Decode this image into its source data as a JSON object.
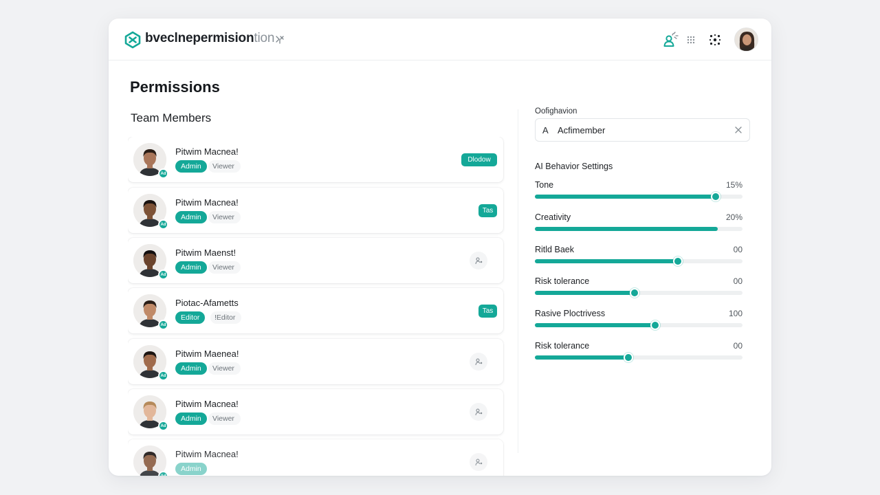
{
  "header": {
    "brand_main": "bvecl​nepermision",
    "brand_faded": "tion",
    "icons": [
      "user-check-icon",
      "apps-grid-icon",
      "settings-dots-icon"
    ]
  },
  "page": {
    "title": "Permissions"
  },
  "team": {
    "title": "Team Members",
    "members": [
      {
        "name": "Pitwim Macnea!",
        "badge": "Ad",
        "role": "Admin",
        "secondary": "Viewer",
        "action": "Dlodow",
        "action_type": "pill",
        "skin": "#a9765a",
        "hair": "#2a1d16"
      },
      {
        "name": "Pitwim Macnea!",
        "badge": "Ad",
        "role": "Admin",
        "secondary": "Viewer",
        "action": "Tas",
        "action_type": "pill",
        "skin": "#7d5236",
        "hair": "#1a1310"
      },
      {
        "name": "Pitwim Maenst!",
        "badge": "Ad",
        "role": "Admin",
        "secondary": "Viewer",
        "action": "",
        "action_type": "icon",
        "skin": "#6a432c",
        "hair": "#141010"
      },
      {
        "name": "Piotac-Afametts",
        "badge": "Ad",
        "role": "Editor",
        "secondary": "!Editor",
        "action": "Tas",
        "action_type": "pill",
        "skin": "#c08a68",
        "hair": "#2b1f18"
      },
      {
        "name": "Pitwim Maenea!",
        "badge": "Ad",
        "role": "Admin",
        "secondary": "Viewer",
        "action": "",
        "action_type": "icon",
        "skin": "#a06b4c",
        "hair": "#1c1512"
      },
      {
        "name": "Pitwim Macnea!",
        "badge": "Ad",
        "role": "Admin",
        "secondary": "Viewer",
        "action": "",
        "action_type": "icon",
        "skin": "#e2b79a",
        "hair": "#b58a5a"
      },
      {
        "name": "Pitwim Macnea!",
        "badge": "Ad",
        "role": "Admin",
        "secondary": "",
        "action": "",
        "action_type": "icon",
        "skin": "#8a5c40",
        "hair": "#1a1412"
      }
    ]
  },
  "search": {
    "label": "Oofighavion",
    "prefix": "A",
    "value": "Acfimember"
  },
  "ai": {
    "title": "AI Behavior Settings",
    "settings": [
      {
        "label": "Tone",
        "value": "15%",
        "level": 0.87,
        "knob": true
      },
      {
        "label": "Creativity",
        "value": "20%",
        "level": 0.88,
        "knob": false
      },
      {
        "label": "Ritld Baek",
        "value": "00",
        "level": 0.69,
        "knob": true
      },
      {
        "label": "Risk tolerance",
        "value": "00",
        "level": 0.48,
        "knob": true
      },
      {
        "label": "Rasive Ploctrivess",
        "value": "100",
        "level": 0.58,
        "knob": true
      },
      {
        "label": "Risk tolerance",
        "value": "00",
        "level": 0.45,
        "knob": true
      }
    ]
  },
  "colors": {
    "accent": "#14a898",
    "text": "#1c1f23",
    "muted": "#6b7278"
  }
}
